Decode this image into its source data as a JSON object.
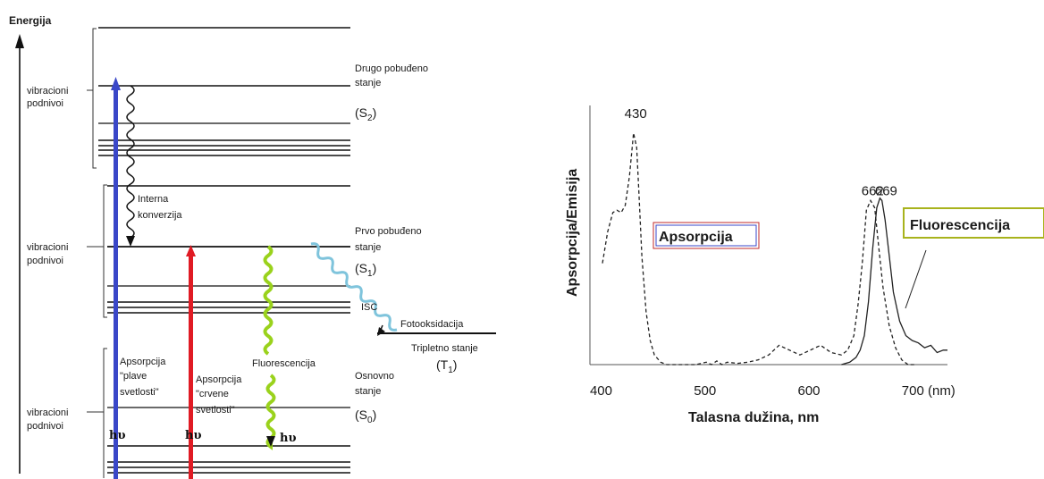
{
  "diagram": {
    "y_axis_label": "Energija",
    "vibrational_label_line1": "vibracioni",
    "vibrational_label_line2": "podnivoi",
    "s2_line1": "Drugo pobuđeno",
    "s2_line2": "stanje",
    "s2_symbol": "(S",
    "s2_sub": "2",
    "s1_line1": "Prvo pobuđeno",
    "s1_line2": "stanje",
    "s1_symbol": "(S",
    "s1_sub": "1",
    "s0_line1": "Osnovno",
    "s0_line2": "stanje",
    "s0_symbol": "(S",
    "s0_sub": "0",
    "internal_conversion_line1": "Interna",
    "internal_conversion_line2": "konverzija",
    "isc": "ISC",
    "photooxidation": "Fotooksidacija",
    "triplet_line1": "Tripletno stanje",
    "triplet_symbol": "(T",
    "triplet_sub": "1",
    "abs_blue_line1": "Apsorpcija",
    "abs_blue_line2": "\"plave",
    "abs_blue_line3": "svetlosti\"",
    "abs_red_line1": "Apsorpcija",
    "abs_red_line2": "\"crvene",
    "abs_red_line3": "svetlosti\"",
    "fluorescence": "Fluorescencija",
    "hv": "hυ",
    "colors": {
      "blue_arrow": "#3a47c8",
      "red_arrow": "#e01b24",
      "green_wave": "#9ad21c",
      "cyan_wave": "#7fc4dc"
    }
  },
  "chart_data": {
    "type": "line",
    "xlabel": "Talasna dužina, nm",
    "ylabel": "Apsorpcija/Emisija",
    "x_unit_tick": "700 (nm)",
    "xlim": [
      388,
      732
    ],
    "ylim": [
      0,
      1
    ],
    "xticks": [
      "400",
      "500",
      "600",
      "700 (nm)"
    ],
    "xtick_values": [
      400,
      500,
      600,
      700
    ],
    "peak_labels": [
      {
        "text": "430",
        "x": 432,
        "y": 1.0
      },
      {
        "text": "662",
        "x": 660,
        "y": 0.68
      },
      {
        "text": "669",
        "x": 673,
        "y": 0.68
      }
    ],
    "series": [
      {
        "name": "Apsorpcija",
        "style": "dashed",
        "x": [
          400,
          405,
          410,
          414,
          418,
          422,
          426,
          430,
          433,
          435,
          438,
          442,
          446,
          450,
          456,
          462,
          470,
          480,
          490,
          500,
          505,
          510,
          515,
          520,
          530,
          540,
          550,
          560,
          570,
          580,
          590,
          600,
          610,
          620,
          630,
          636,
          642,
          646,
          650,
          654,
          658,
          662,
          666,
          670,
          676,
          682,
          688,
          694,
          700
        ],
        "values": [
          0.42,
          0.55,
          0.63,
          0.64,
          0.63,
          0.66,
          0.78,
          0.96,
          0.9,
          0.72,
          0.45,
          0.22,
          0.1,
          0.04,
          0.01,
          0.0,
          0.0,
          0.0,
          0.0,
          0.01,
          0.0,
          0.015,
          0.0,
          0.01,
          0.005,
          0.01,
          0.02,
          0.04,
          0.08,
          0.06,
          0.04,
          0.06,
          0.08,
          0.05,
          0.04,
          0.06,
          0.12,
          0.25,
          0.42,
          0.64,
          0.68,
          0.65,
          0.48,
          0.32,
          0.16,
          0.07,
          0.02,
          0.0,
          0.0
        ]
      },
      {
        "name": "Fluorescencija",
        "style": "solid",
        "x": [
          630,
          638,
          644,
          648,
          652,
          656,
          660,
          664,
          667,
          669,
          672,
          676,
          680,
          686,
          692,
          698,
          704,
          710,
          716,
          722,
          728,
          732
        ],
        "values": [
          0.0,
          0.01,
          0.03,
          0.06,
          0.12,
          0.26,
          0.48,
          0.65,
          0.69,
          0.68,
          0.6,
          0.45,
          0.3,
          0.18,
          0.12,
          0.1,
          0.09,
          0.07,
          0.08,
          0.05,
          0.06,
          0.06
        ]
      }
    ],
    "legend_boxes": [
      "Apsorpcija",
      "Fluorescencija"
    ],
    "colors": {
      "abs_box_border": "#c0282a",
      "fl_box_border": "#a8b31c",
      "line": "#222222"
    }
  }
}
